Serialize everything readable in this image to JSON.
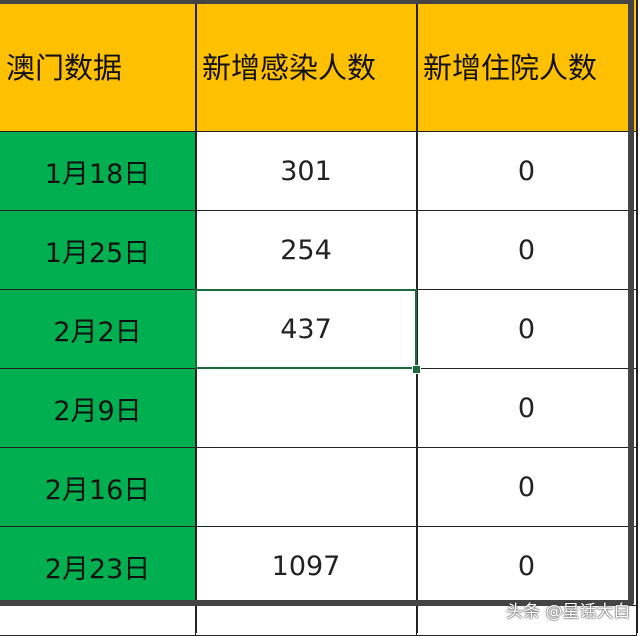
{
  "headers": [
    "澳门数据",
    "新增感染人数",
    "新增住院人数"
  ],
  "rows": [
    {
      "date": "1月18日",
      "infected": "301",
      "hospitalized": "0"
    },
    {
      "date": "1月25日",
      "infected": "254",
      "hospitalized": "0"
    },
    {
      "date": "2月2日",
      "infected": "437",
      "hospitalized": "0"
    },
    {
      "date": "2月9日",
      "infected": "",
      "hospitalized": "0"
    },
    {
      "date": "2月16日",
      "infected": "",
      "hospitalized": "0"
    },
    {
      "date": "2月23日",
      "infected": "1097",
      "hospitalized": "0"
    }
  ],
  "colors": {
    "header": "#ffc000",
    "date_column": "#00b050",
    "selection": "#1e6b3a"
  },
  "watermark": "头条 @星话大白"
}
